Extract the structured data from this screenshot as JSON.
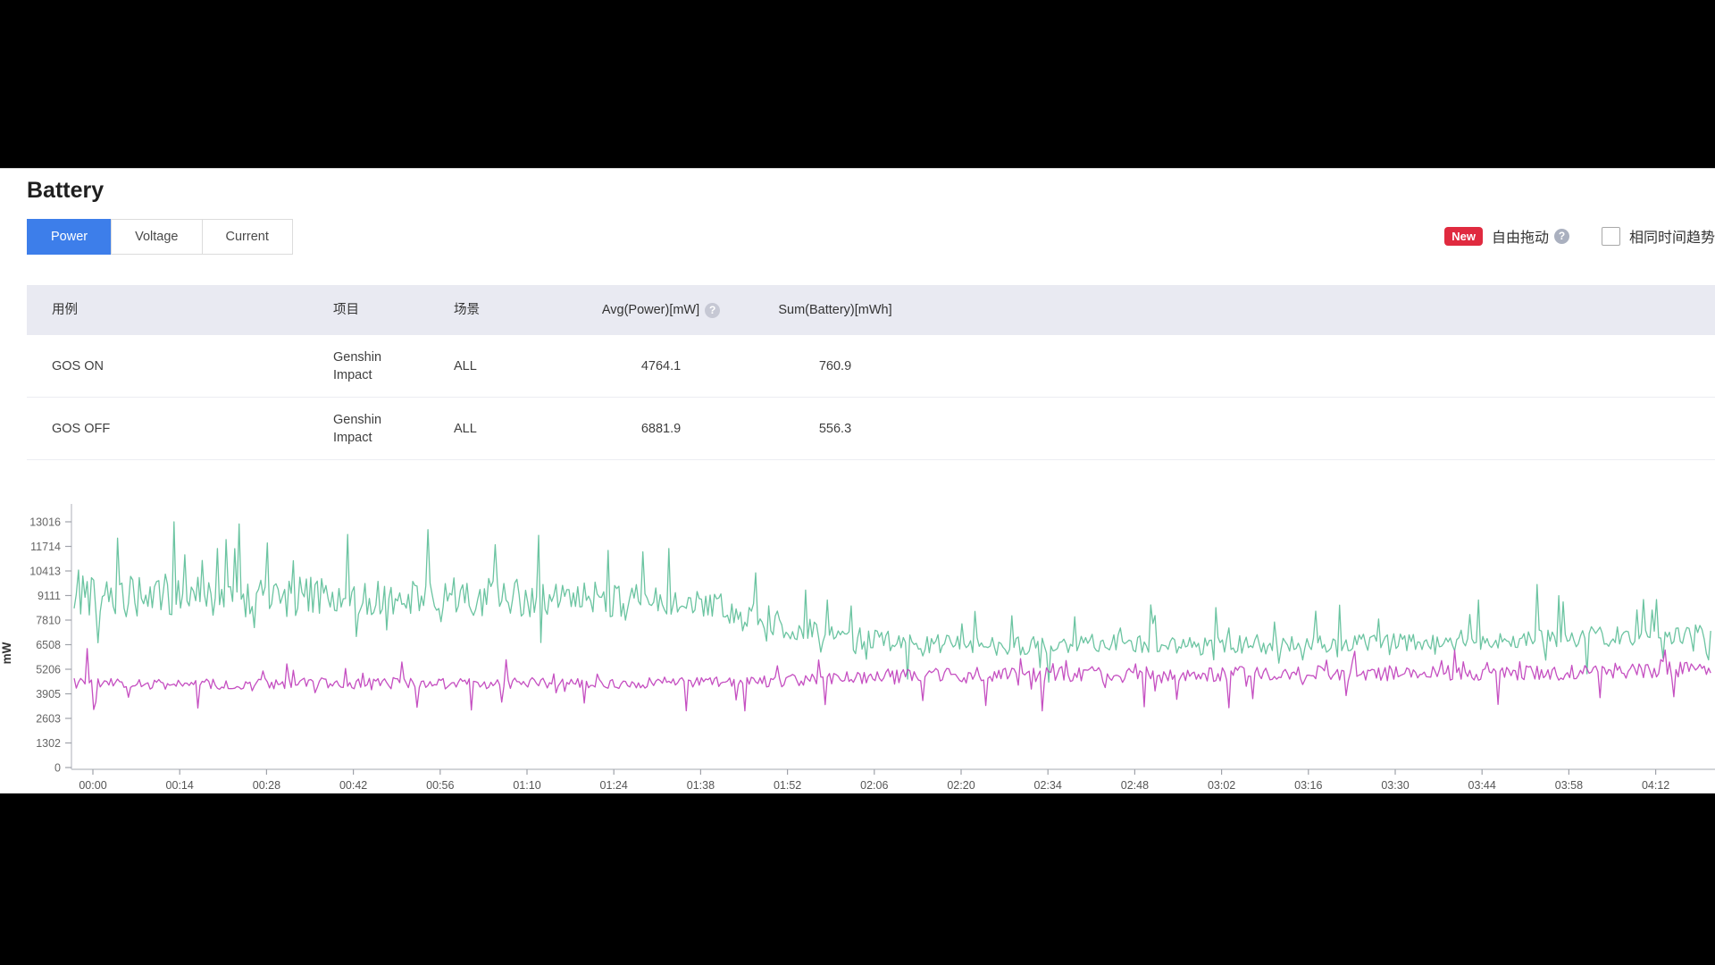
{
  "page": {
    "title": "Battery"
  },
  "colors": {
    "accent_blue": "#3d7eea",
    "badge_red": "#e02a3f",
    "table_header_bg": "#e9eaf2",
    "series_green": "#63c19c",
    "series_magenta": "#c246be",
    "axis_line": "#c4c6cc",
    "tick_label": "#666666"
  },
  "tabs": {
    "items": [
      {
        "label": "Power",
        "active": true
      },
      {
        "label": "Voltage",
        "active": false
      },
      {
        "label": "Current",
        "active": false
      }
    ]
  },
  "controls": {
    "new_badge": "New",
    "free_drag_label": "自由拖动",
    "free_drag_help_icon": "?",
    "same_time_trend_label": "相同时间趋势",
    "same_time_trend_checked": false
  },
  "table": {
    "headers": [
      "用例",
      "项目",
      "场景",
      "Avg(Power)[mW]",
      "Sum(Battery)[mWh]"
    ],
    "avg_header_help_icon": "?",
    "rows": [
      {
        "usecase": "GOS ON",
        "project": "Genshin Impact",
        "scene": "ALL",
        "avg_power": "4764.1",
        "sum_battery": "760.9"
      },
      {
        "usecase": "GOS OFF",
        "project": "Genshin Impact",
        "scene": "ALL",
        "avg_power": "6881.9",
        "sum_battery": "556.3"
      }
    ]
  },
  "chart_data": {
    "type": "line",
    "title": "",
    "xlabel": "",
    "ylabel": "mW",
    "ylim": [
      0,
      13016
    ],
    "y_ticks": [
      0,
      1302,
      2603,
      3905,
      5206,
      6508,
      7810,
      9111,
      10413,
      11714,
      13016
    ],
    "x_tick_labels": [
      "00:00",
      "00:14",
      "00:28",
      "00:42",
      "00:56",
      "01:10",
      "01:24",
      "01:38",
      "01:52",
      "02:06",
      "02:20",
      "02:34",
      "02:48",
      "03:02",
      "03:16",
      "03:30",
      "03:44",
      "03:58",
      "04:12"
    ],
    "x_tick_interval_min": 14,
    "duration_min": 264,
    "sample_step_min": 0.35,
    "seed": 42,
    "grid": false,
    "legend": "none",
    "series": [
      {
        "name": "GOS OFF",
        "avg_mW": 6881.9,
        "color": "#63c19c",
        "trend": [
          [
            0,
            9000
          ],
          [
            15,
            9150
          ],
          [
            30,
            9000
          ],
          [
            45,
            9100
          ],
          [
            60,
            9050
          ],
          [
            75,
            8900
          ],
          [
            90,
            8750
          ],
          [
            100,
            8500
          ],
          [
            105,
            8300
          ],
          [
            112,
            7800
          ],
          [
            120,
            7200
          ],
          [
            128,
            6800
          ],
          [
            135,
            6600
          ],
          [
            150,
            6450
          ],
          [
            165,
            6550
          ],
          [
            180,
            6450
          ],
          [
            195,
            6550
          ],
          [
            210,
            6600
          ],
          [
            225,
            6650
          ],
          [
            240,
            6850
          ],
          [
            252,
            7000
          ],
          [
            264,
            7050
          ]
        ],
        "noise_amp": [
          [
            0,
            1150
          ],
          [
            100,
            1000
          ],
          [
            120,
            650
          ],
          [
            135,
            520
          ],
          [
            264,
            520
          ]
        ],
        "spike_up": {
          "prob": 0.07,
          "max": [
            [
              0,
              3900
            ],
            [
              100,
              2500
            ],
            [
              135,
              1500
            ],
            [
              230,
              2400
            ],
            [
              264,
              1800
            ]
          ]
        },
        "spike_down": {
          "prob": 0.06,
          "max": [
            [
              0,
              2300
            ],
            [
              120,
              1700
            ],
            [
              264,
              1500
            ]
          ]
        },
        "forced_points": [
          [
            7,
            12150
          ],
          [
            16,
            13016
          ],
          [
            23,
            11600
          ],
          [
            31,
            11900
          ],
          [
            44,
            12350
          ],
          [
            57,
            12600
          ],
          [
            68,
            11800
          ],
          [
            75,
            12300
          ],
          [
            86,
            11500
          ],
          [
            96,
            11600
          ],
          [
            118,
            9400
          ],
          [
            204,
            8600
          ],
          [
            236,
            9700
          ],
          [
            255,
            8900
          ]
        ]
      },
      {
        "name": "GOS ON",
        "avg_mW": 4764.1,
        "color": "#c246be",
        "trend": [
          [
            0,
            4450
          ],
          [
            20,
            4400
          ],
          [
            40,
            4470
          ],
          [
            60,
            4430
          ],
          [
            80,
            4480
          ],
          [
            100,
            4500
          ],
          [
            115,
            4600
          ],
          [
            130,
            4800
          ],
          [
            145,
            4900
          ],
          [
            160,
            4950
          ],
          [
            175,
            4900
          ],
          [
            190,
            5000
          ],
          [
            205,
            4950
          ],
          [
            220,
            5050
          ],
          [
            235,
            5000
          ],
          [
            250,
            5150
          ],
          [
            264,
            5250
          ]
        ],
        "noise_amp": [
          [
            0,
            280
          ],
          [
            110,
            300
          ],
          [
            130,
            420
          ],
          [
            264,
            430
          ]
        ],
        "spike_up": {
          "prob": 0.05,
          "max": [
            [
              0,
              1500
            ],
            [
              130,
              1100
            ],
            [
              264,
              1000
            ]
          ]
        },
        "spike_down": {
          "prob": 0.05,
          "max": [
            [
              0,
              1250
            ],
            [
              130,
              1700
            ],
            [
              264,
              1500
            ]
          ]
        },
        "forced_points": [
          [
            2,
            6300
          ],
          [
            20,
            3150
          ],
          [
            64,
            3050
          ],
          [
            108,
            3000
          ],
          [
            156,
            3000
          ],
          [
            190,
            3650
          ],
          [
            246,
            3700
          ],
          [
            258,
            3750
          ]
        ]
      }
    ]
  }
}
